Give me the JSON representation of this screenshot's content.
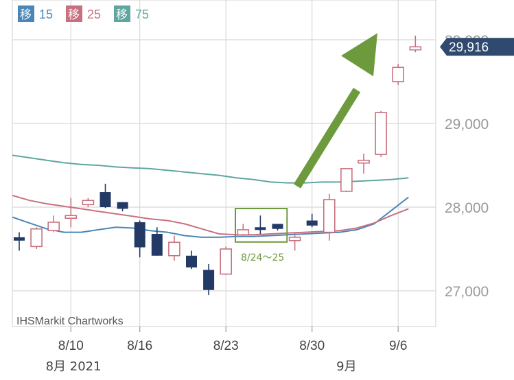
{
  "legend": [
    {
      "tag": "移",
      "period": "15",
      "color": "#4a86b8"
    },
    {
      "tag": "移",
      "period": "25",
      "color": "#c8717e"
    },
    {
      "tag": "移",
      "period": "75",
      "color": "#5fa6a0"
    }
  ],
  "price_badge": "29,916",
  "watermark": "IHSMarkit Chartworks",
  "annotation": "8/24〜25",
  "x_month_labels": [
    {
      "text": "8月 2021",
      "at_day": 1
    },
    {
      "text": "9月",
      "at_day": 19
    }
  ],
  "colors": {
    "up": "#c8717e",
    "down": "#233a66",
    "grid": "#d8d8d8",
    "axis_text": "#9a9a9a",
    "badge": "#2f4a6e",
    "arrow": "#6e9a3e",
    "box": "#6e9a3e"
  },
  "chart_data": {
    "type": "candlestick",
    "ylim": [
      26600,
      30400
    ],
    "y_ticks": [
      {
        "value": 27000,
        "label": "27,000"
      },
      {
        "value": 28000,
        "label": "28,000"
      },
      {
        "value": 29000,
        "label": "29,000"
      },
      {
        "value": 30000,
        "label": "30,000"
      }
    ],
    "x_ticks": [
      {
        "label": "8/10",
        "at_day": 3
      },
      {
        "label": "8/16",
        "at_day": 7
      },
      {
        "label": "8/23",
        "at_day": 12
      },
      {
        "label": "8/30",
        "at_day": 17
      },
      {
        "label": "9/6",
        "at_day": 22
      }
    ],
    "candles": [
      {
        "date": "8/5",
        "open": 27640,
        "high": 27700,
        "low": 27480,
        "close": 27600
      },
      {
        "date": "8/6",
        "open": 27530,
        "high": 27760,
        "low": 27500,
        "close": 27740
      },
      {
        "date": "8/9",
        "open": 27720,
        "high": 27900,
        "low": 27700,
        "close": 27820
      },
      {
        "date": "8/10",
        "open": 27880,
        "high": 28110,
        "low": 27760,
        "close": 27900
      },
      {
        "date": "8/11",
        "open": 28030,
        "high": 28110,
        "low": 28000,
        "close": 28080
      },
      {
        "date": "8/12",
        "open": 28180,
        "high": 28280,
        "low": 27990,
        "close": 28000
      },
      {
        "date": "8/13",
        "open": 28060,
        "high": 28060,
        "low": 27950,
        "close": 27980
      },
      {
        "date": "8/16",
        "open": 27820,
        "high": 27840,
        "low": 27400,
        "close": 27520
      },
      {
        "date": "8/17",
        "open": 27680,
        "high": 27760,
        "low": 27420,
        "close": 27420
      },
      {
        "date": "8/18",
        "open": 27420,
        "high": 27660,
        "low": 27360,
        "close": 27580
      },
      {
        "date": "8/19",
        "open": 27420,
        "high": 27480,
        "low": 27260,
        "close": 27280
      },
      {
        "date": "8/20",
        "open": 27250,
        "high": 27320,
        "low": 26950,
        "close": 27010
      },
      {
        "date": "8/23",
        "open": 27200,
        "high": 27530,
        "low": 27190,
        "close": 27500
      },
      {
        "date": "8/24",
        "open": 27670,
        "high": 27800,
        "low": 27640,
        "close": 27730
      },
      {
        "date": "8/25",
        "open": 27760,
        "high": 27900,
        "low": 27680,
        "close": 27730
      },
      {
        "date": "8/26",
        "open": 27800,
        "high": 27800,
        "low": 27720,
        "close": 27740
      },
      {
        "date": "8/27",
        "open": 27600,
        "high": 27690,
        "low": 27480,
        "close": 27640
      },
      {
        "date": "8/30",
        "open": 27840,
        "high": 27920,
        "low": 27760,
        "close": 27780
      },
      {
        "date": "8/31",
        "open": 27700,
        "high": 28160,
        "low": 27600,
        "close": 28090
      },
      {
        "date": "9/1",
        "open": 28190,
        "high": 28460,
        "low": 28180,
        "close": 28460
      },
      {
        "date": "9/2",
        "open": 28530,
        "high": 28640,
        "low": 28400,
        "close": 28560
      },
      {
        "date": "9/3",
        "open": 28630,
        "high": 29150,
        "low": 28600,
        "close": 29130
      },
      {
        "date": "9/6",
        "open": 29500,
        "high": 29710,
        "low": 29460,
        "close": 29670
      },
      {
        "date": "9/7",
        "open": 29880,
        "high": 30050,
        "low": 29850,
        "close": 29916
      }
    ],
    "moving_averages": [
      {
        "period": "15",
        "color": "#4a86b8",
        "values": [
          27880,
          27810,
          27740,
          27700,
          27700,
          27730,
          27760,
          27750,
          27720,
          27700,
          27660,
          27640,
          27640,
          27650,
          27650,
          27660,
          27670,
          27680,
          27690,
          27700,
          27730,
          27800,
          27960,
          28120
        ]
      },
      {
        "period": "25",
        "color": "#c8717e",
        "values": [
          28140,
          28080,
          28040,
          28010,
          27980,
          27950,
          27920,
          27890,
          27860,
          27840,
          27800,
          27740,
          27680,
          27670,
          27670,
          27680,
          27690,
          27700,
          27710,
          27720,
          27750,
          27810,
          27900,
          27980
        ]
      },
      {
        "period": "75",
        "color": "#5fa6a0",
        "values": [
          28620,
          28590,
          28560,
          28530,
          28510,
          28500,
          28480,
          28470,
          28460,
          28440,
          28420,
          28400,
          28380,
          28350,
          28330,
          28300,
          28290,
          28290,
          28300,
          28300,
          28310,
          28320,
          28330,
          28350
        ]
      }
    ]
  }
}
